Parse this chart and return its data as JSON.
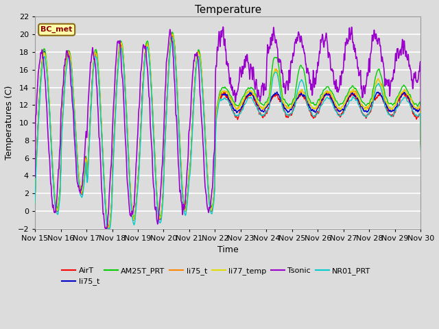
{
  "title": "Temperature",
  "xlabel": "Time",
  "ylabel": "Temperatures (C)",
  "ylim": [
    -2,
    22
  ],
  "annotation": "BC_met",
  "bg_color": "#dcdcdc",
  "grid_color": "white",
  "series_colors": {
    "AirT": "#ff0000",
    "li75_t_b": "#0000cc",
    "AM25T_PRT": "#00cc00",
    "li75_t": "#ff8800",
    "li77_temp": "#dddd00",
    "Tsonic": "#9900cc",
    "NR01_PRT": "#00cccc"
  },
  "xtick_labels": [
    "Nov 15",
    "Nov 16",
    "Nov 17",
    "Nov 18",
    "Nov 19",
    "Nov 20",
    "Nov 21",
    "Nov 22",
    "Nov 23",
    "Nov 24",
    "Nov 25",
    "Nov 26",
    "Nov 27",
    "Nov 28",
    "Nov 29",
    "Nov 30"
  ],
  "ytick_vals": [
    -2,
    0,
    2,
    4,
    6,
    8,
    10,
    12,
    14,
    16,
    18,
    20,
    22
  ],
  "figsize": [
    6.4,
    4.8
  ],
  "dpi": 100
}
